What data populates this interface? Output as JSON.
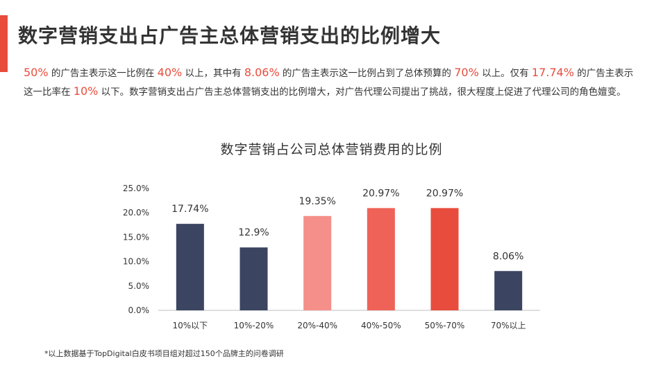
{
  "page": {
    "title": "数字营销支出占广告主总体营销支出的比例增大",
    "summary": [
      {
        "t": "50%",
        "hl": true
      },
      {
        "t": " 的广告主表示这一比例在 ",
        "hl": false
      },
      {
        "t": "40%",
        "hl": true
      },
      {
        "t": " 以上，其中有 ",
        "hl": false
      },
      {
        "t": "8.06%",
        "hl": true
      },
      {
        "t": " 的广告主表示这一比例占到了总体预算的 ",
        "hl": false
      },
      {
        "t": "70%",
        "hl": true
      },
      {
        "t": " 以上。仅有 ",
        "hl": false
      },
      {
        "t": "17.74%",
        "hl": true
      },
      {
        "t": " 的广告主表示这一比率在 ",
        "hl": false
      },
      {
        "t": "10%",
        "hl": true
      },
      {
        "t": " 以下。数字营销支出占广告主总体营销支出的比例增大，对广告代理公司提出了挑战，很大程度上促进了代理公司的角色嬗变。",
        "hl": false
      }
    ],
    "footnote": "*以上数据基于TopDigital白皮书项目组对超过150个品牌主的问卷调研",
    "colors": {
      "accent": "#e84c3d",
      "navy": "#3b4561",
      "pink": "#f49089",
      "salmon": "#ee6257",
      "red": "#e84c3d",
      "axis": "#bfbfbf"
    }
  },
  "chart_data": {
    "type": "bar",
    "title": "数字营销占公司总体营销费用的比例",
    "xlabel": "",
    "ylabel": "",
    "categories": [
      "10%以下",
      "10%-20%",
      "20%-40%",
      "40%-50%",
      "50%-70%",
      "70%以上"
    ],
    "values": [
      17.74,
      12.9,
      19.35,
      20.97,
      20.97,
      8.06
    ],
    "data_labels": [
      "17.74%",
      "12.9%",
      "19.35%",
      "20.97%",
      "20.97%",
      "8.06%"
    ],
    "bar_colors": [
      "#3b4561",
      "#3b4561",
      "#f49089",
      "#ee6257",
      "#e84c3d",
      "#3b4561"
    ],
    "ylim": [
      0,
      25
    ],
    "yticks": [
      0,
      5,
      10,
      15,
      20,
      25
    ],
    "ytick_labels": [
      "0.0%",
      "5.0%",
      "10.0%",
      "15.0%",
      "20.0%",
      "25.0%"
    ],
    "grid": false,
    "legend": "none"
  }
}
